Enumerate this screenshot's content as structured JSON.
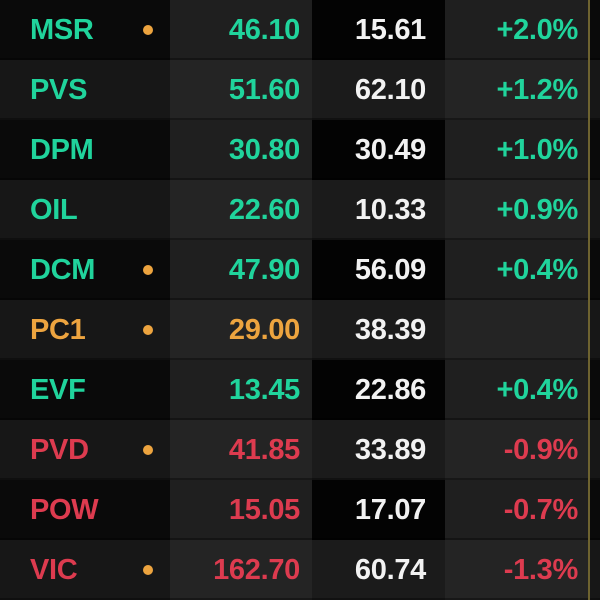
{
  "board": {
    "columns": [
      "symbol",
      "price",
      "value",
      "change_pct"
    ],
    "rows": [
      {
        "symbol": "MSR",
        "dot": true,
        "price": "46.10",
        "value": "15.61",
        "change": "+2.0%",
        "trend": "up"
      },
      {
        "symbol": "PVS",
        "dot": false,
        "price": "51.60",
        "value": "62.10",
        "change": "+1.2%",
        "trend": "up"
      },
      {
        "symbol": "DPM",
        "dot": false,
        "price": "30.80",
        "value": "30.49",
        "change": "+1.0%",
        "trend": "up"
      },
      {
        "symbol": "OIL",
        "dot": false,
        "price": "22.60",
        "value": "10.33",
        "change": "+0.9%",
        "trend": "up"
      },
      {
        "symbol": "DCM",
        "dot": true,
        "price": "47.90",
        "value": "56.09",
        "change": "+0.4%",
        "trend": "up"
      },
      {
        "symbol": "PC1",
        "dot": true,
        "price": "29.00",
        "value": "38.39",
        "change": "",
        "trend": "ref"
      },
      {
        "symbol": "EVF",
        "dot": false,
        "price": "13.45",
        "value": "22.86",
        "change": "+0.4%",
        "trend": "up"
      },
      {
        "symbol": "PVD",
        "dot": true,
        "price": "41.85",
        "value": "33.89",
        "change": "-0.9%",
        "trend": "down"
      },
      {
        "symbol": "POW",
        "dot": false,
        "price": "15.05",
        "value": "17.07",
        "change": "-0.7%",
        "trend": "down"
      },
      {
        "symbol": "VIC",
        "dot": true,
        "price": "162.70",
        "value": "60.74",
        "change": "-1.3%",
        "trend": "down"
      }
    ]
  },
  "colors": {
    "up": "#20d49c",
    "down": "#dd3b4f",
    "ref": "#eda43f",
    "neutral": "#f2f2f2",
    "dot": "#eda43f",
    "divider_line": "#6e6330"
  }
}
